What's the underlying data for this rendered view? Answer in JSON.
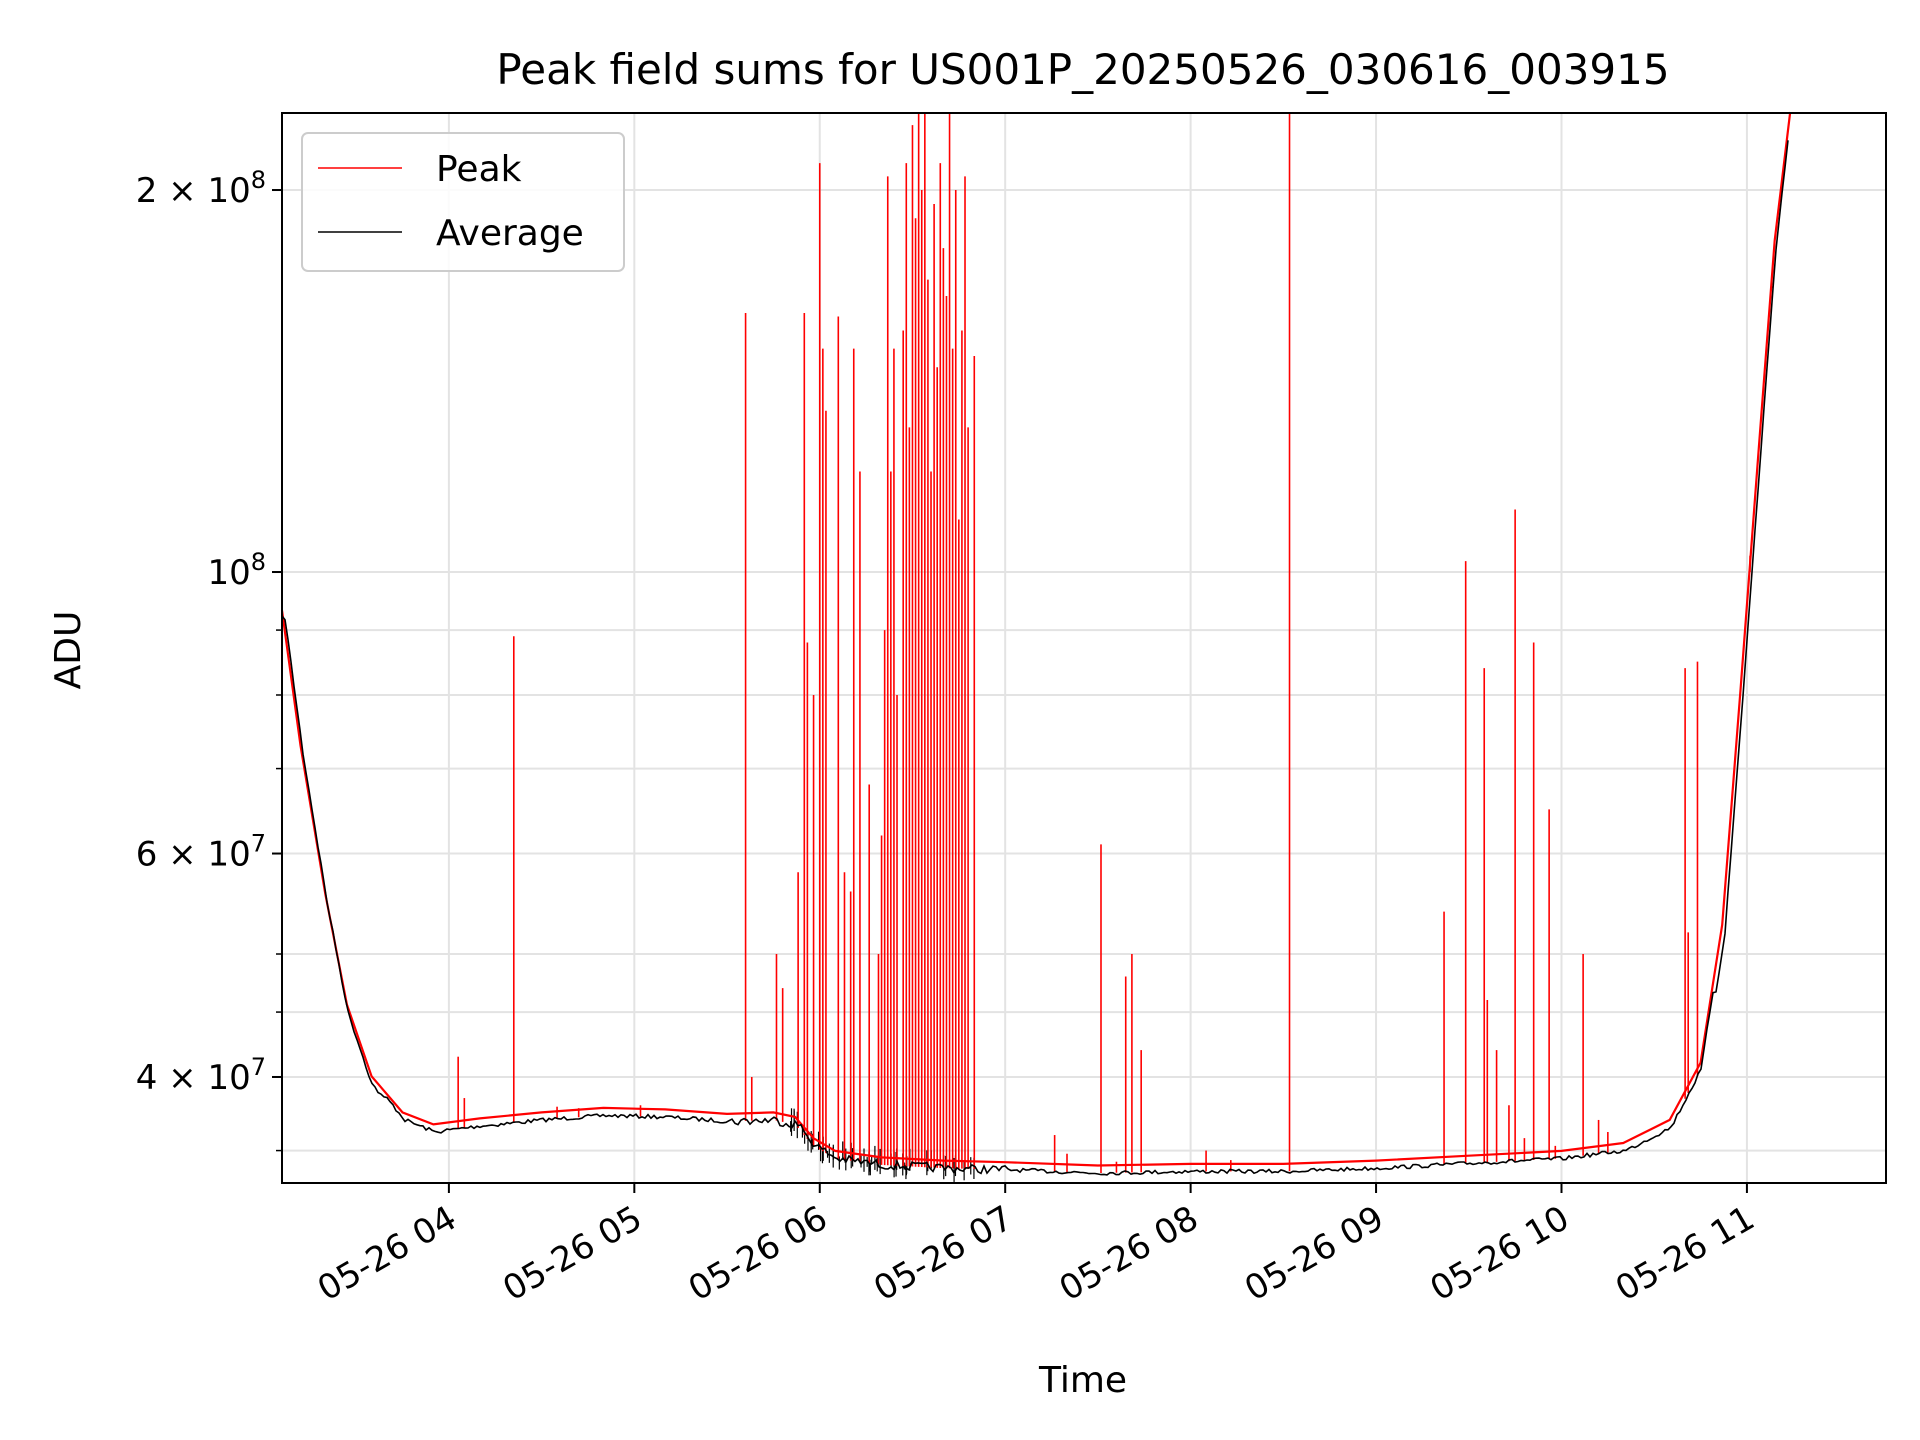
{
  "chart_data": {
    "type": "line",
    "title": "Peak field sums for US001P_20250526_030616_003915",
    "xlabel": "Time",
    "ylabel": "ADU",
    "y_scale": "log",
    "ylim": [
      33000000,
      230000000
    ],
    "xlim": [
      "05-26 03:06",
      "05-26 11:45"
    ],
    "x_ticks": [
      {
        "time": "05-26 04:00",
        "label": "05-26 04"
      },
      {
        "time": "05-26 05:00",
        "label": "05-26 05"
      },
      {
        "time": "05-26 06:00",
        "label": "05-26 06"
      },
      {
        "time": "05-26 07:00",
        "label": "05-26 07"
      },
      {
        "time": "05-26 08:00",
        "label": "05-26 08"
      },
      {
        "time": "05-26 09:00",
        "label": "05-26 09"
      },
      {
        "time": "05-26 10:00",
        "label": "05-26 10"
      },
      {
        "time": "05-26 11:00",
        "label": "05-26 11"
      }
    ],
    "y_ticks": [
      {
        "value": 40000000,
        "base": "4 × 10",
        "exp": "7"
      },
      {
        "value": 60000000,
        "base": "6 × 10",
        "exp": "7"
      },
      {
        "value": 100000000,
        "base": "10",
        "exp": "8"
      },
      {
        "value": 200000000,
        "base": "2 × 10",
        "exp": "8"
      }
    ],
    "y_minor_gridlines": [
      35000000,
      45000000,
      50000000,
      70000000,
      80000000,
      90000000
    ],
    "grid": true,
    "legend_position": "top-left",
    "series": [
      {
        "name": "Average",
        "color": "#000000",
        "points": [
          [
            "05-26 03:06",
            92000000
          ],
          [
            "05-26 03:12",
            72000000
          ],
          [
            "05-26 03:20",
            55000000
          ],
          [
            "05-26 03:27",
            45000000
          ],
          [
            "05-26 03:35",
            39500000
          ],
          [
            "05-26 03:45",
            37000000
          ],
          [
            "05-26 03:55",
            36200000
          ],
          [
            "05-26 04:10",
            36600000
          ],
          [
            "05-26 04:30",
            37000000
          ],
          [
            "05-26 04:50",
            37300000
          ],
          [
            "05-26 05:10",
            37200000
          ],
          [
            "05-26 05:30",
            36900000
          ],
          [
            "05-26 05:45",
            37000000
          ],
          [
            "05-26 05:52",
            36700000
          ],
          [
            "05-26 05:58",
            35300000
          ],
          [
            "05-26 06:05",
            34500000
          ],
          [
            "05-26 06:20",
            34100000
          ],
          [
            "05-26 06:40",
            33900000
          ],
          [
            "05-26 07:00",
            33800000
          ],
          [
            "05-26 07:30",
            33600000
          ],
          [
            "05-26 08:00",
            33700000
          ],
          [
            "05-26 08:30",
            33700000
          ],
          [
            "05-26 09:00",
            33900000
          ],
          [
            "05-26 09:30",
            34200000
          ],
          [
            "05-26 10:00",
            34500000
          ],
          [
            "05-26 10:20",
            35000000
          ],
          [
            "05-26 10:35",
            36500000
          ],
          [
            "05-26 10:45",
            40500000
          ],
          [
            "05-26 10:52",
            52000000
          ],
          [
            "05-26 10:58",
            80000000
          ],
          [
            "05-26 11:04",
            125000000
          ],
          [
            "05-26 11:09",
            180000000
          ],
          [
            "05-26 11:14",
            230000000
          ]
        ]
      },
      {
        "name": "Peak",
        "color": "#ff0000",
        "spikes": [
          [
            "05-26 04:03",
            41500000
          ],
          [
            "05-26 04:05",
            38500000
          ],
          [
            "05-26 04:21",
            89000000
          ],
          [
            "05-26 04:35",
            37900000
          ],
          [
            "05-26 04:42",
            37800000
          ],
          [
            "05-26 05:02",
            38000000
          ],
          [
            "05-26 05:36",
            160000000
          ],
          [
            "05-26 05:38",
            40000000
          ],
          [
            "05-26 05:46",
            50000000
          ],
          [
            "05-26 05:48",
            47000000
          ],
          [
            "05-26 05:53",
            58000000
          ],
          [
            "05-26 05:55",
            160000000
          ],
          [
            "05-26 05:56",
            88000000
          ],
          [
            "05-26 05:58",
            80000000
          ],
          [
            "05-26 06:00",
            210000000
          ],
          [
            "05-26 06:01",
            150000000
          ],
          [
            "05-26 06:02",
            134000000
          ],
          [
            "05-26 06:06",
            159000000
          ],
          [
            "05-26 06:08",
            58000000
          ],
          [
            "05-26 06:10",
            56000000
          ],
          [
            "05-26 06:11",
            150000000
          ],
          [
            "05-26 06:13",
            120000000
          ],
          [
            "05-26 06:16",
            68000000
          ],
          [
            "05-26 06:19",
            50000000
          ],
          [
            "05-26 06:20",
            62000000
          ],
          [
            "05-26 06:21",
            90000000
          ],
          [
            "05-26 06:22",
            205000000
          ],
          [
            "05-26 06:23",
            120000000
          ],
          [
            "05-26 06:24",
            150000000
          ],
          [
            "05-26 06:25",
            80000000
          ],
          [
            "05-26 06:27",
            155000000
          ],
          [
            "05-26 06:28",
            210000000
          ],
          [
            "05-26 06:29",
            130000000
          ],
          [
            "05-26 06:30",
            225000000
          ],
          [
            "05-26 06:31",
            190000000
          ],
          [
            "05-26 06:32",
            230000000
          ],
          [
            "05-26 06:33",
            200000000
          ],
          [
            "05-26 06:34",
            230000000
          ],
          [
            "05-26 06:35",
            170000000
          ],
          [
            "05-26 06:36",
            120000000
          ],
          [
            "05-26 06:37",
            195000000
          ],
          [
            "05-26 06:38",
            145000000
          ],
          [
            "05-26 06:39",
            210000000
          ],
          [
            "05-26 06:40",
            180000000
          ],
          [
            "05-26 06:41",
            165000000
          ],
          [
            "05-26 06:42",
            230000000
          ],
          [
            "05-26 06:43",
            150000000
          ],
          [
            "05-26 06:44",
            200000000
          ],
          [
            "05-26 06:45",
            110000000
          ],
          [
            "05-26 06:46",
            155000000
          ],
          [
            "05-26 06:47",
            205000000
          ],
          [
            "05-26 06:48",
            130000000
          ],
          [
            "05-26 06:50",
            148000000
          ],
          [
            "05-26 07:16",
            36000000
          ],
          [
            "05-26 07:20",
            34800000
          ],
          [
            "05-26 07:31",
            61000000
          ],
          [
            "05-26 07:36",
            34300000
          ],
          [
            "05-26 07:39",
            48000000
          ],
          [
            "05-26 07:41",
            50000000
          ],
          [
            "05-26 07:44",
            42000000
          ],
          [
            "05-26 08:05",
            35000000
          ],
          [
            "05-26 08:13",
            34400000
          ],
          [
            "05-26 08:32",
            230000000
          ],
          [
            "05-26 09:22",
            54000000
          ],
          [
            "05-26 09:29",
            102000000
          ],
          [
            "05-26 09:35",
            84000000
          ],
          [
            "05-26 09:36",
            46000000
          ],
          [
            "05-26 09:39",
            42000000
          ],
          [
            "05-26 09:43",
            38000000
          ],
          [
            "05-26 09:45",
            112000000
          ],
          [
            "05-26 09:48",
            35800000
          ],
          [
            "05-26 09:51",
            88000000
          ],
          [
            "05-26 09:56",
            65000000
          ],
          [
            "05-26 09:58",
            35300000
          ],
          [
            "05-26 10:07",
            50000000
          ],
          [
            "05-26 10:12",
            37000000
          ],
          [
            "05-26 10:15",
            36200000
          ],
          [
            "05-26 10:40",
            84000000
          ],
          [
            "05-26 10:41",
            52000000
          ],
          [
            "05-26 10:44",
            85000000
          ],
          [
            "05-26 11:01",
            103000000
          ],
          [
            "05-26 11:08",
            168000000
          ]
        ]
      }
    ]
  }
}
